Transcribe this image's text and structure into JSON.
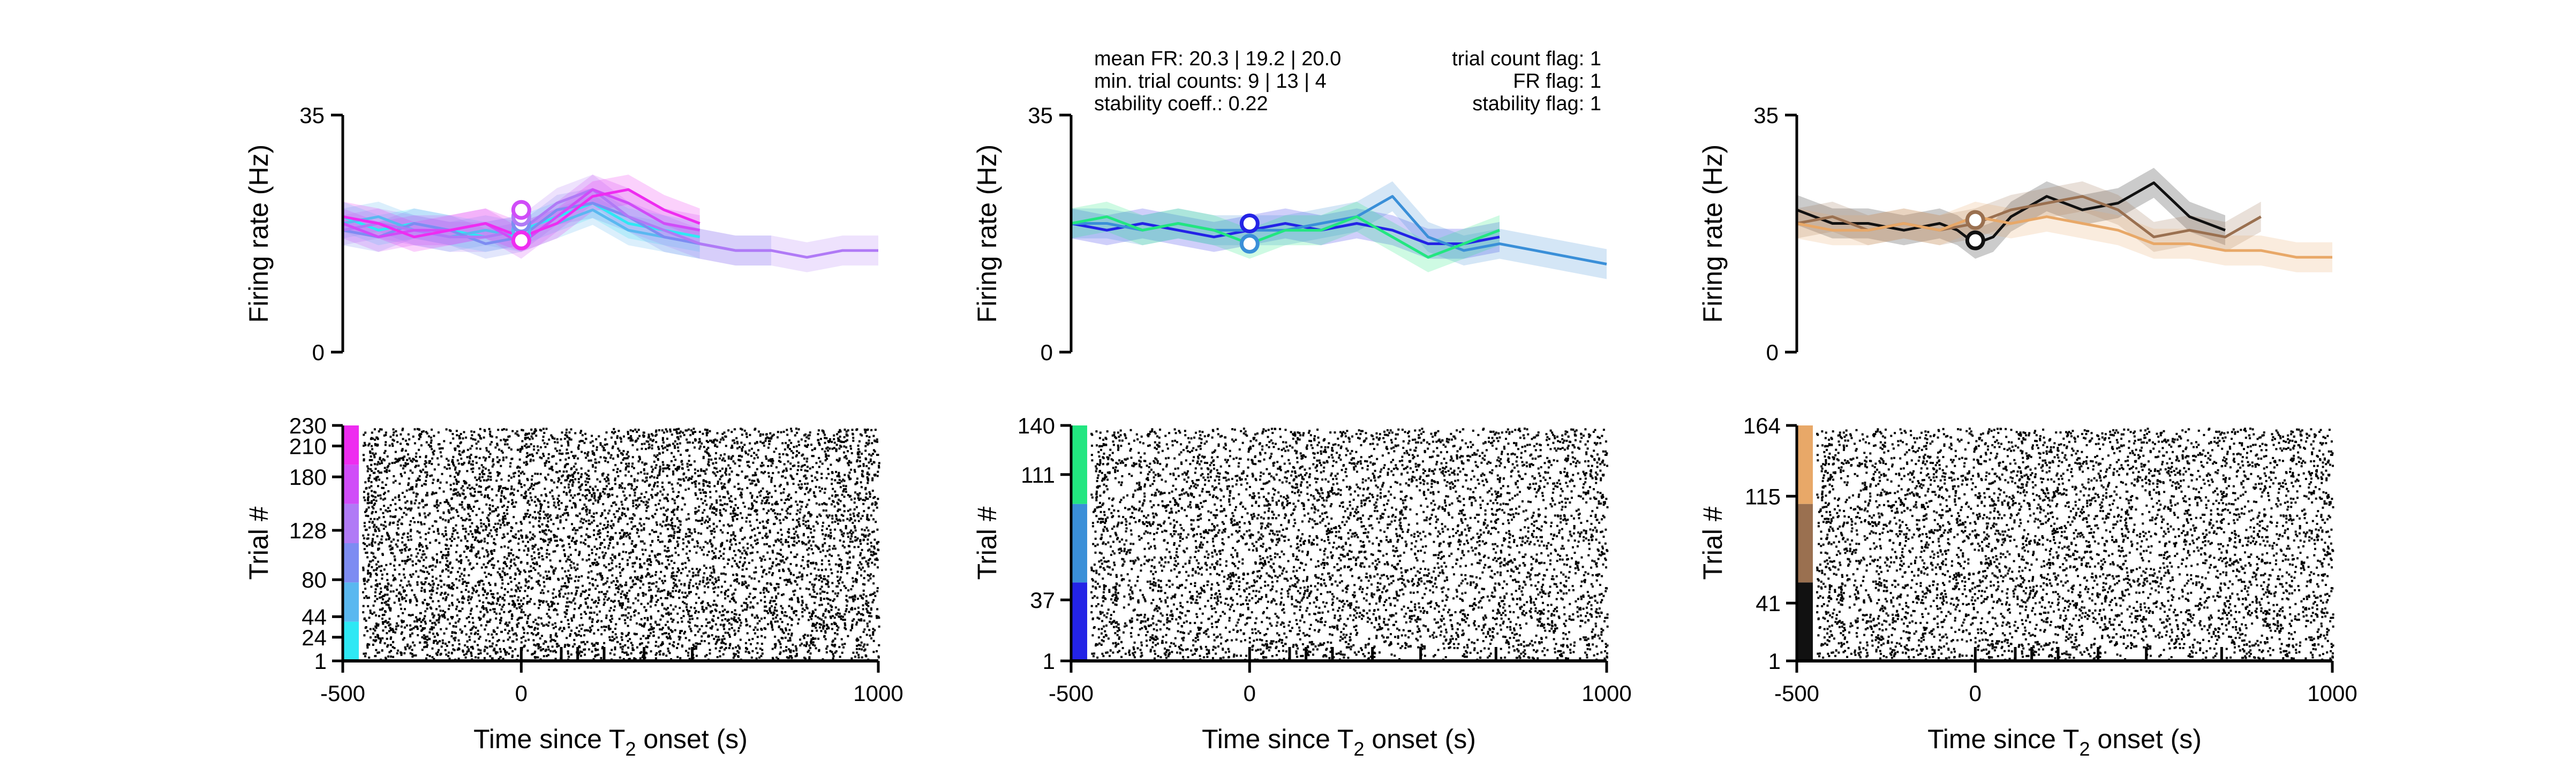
{
  "chart_data": [
    {
      "type": "line",
      "panel": "left",
      "xlabel": "Time since T",
      "xlabel_sub": "2",
      "xlabel_suffix": " onset (s)",
      "ylabel_top": "Firing rate (Hz)",
      "ylabel_bottom": "Trial #",
      "xlim": [
        -500,
        1000
      ],
      "x_ticks": [
        "-500",
        "0",
        "1000"
      ],
      "ylim": [
        0,
        35
      ],
      "y_ticks": [
        "0",
        "35"
      ],
      "raster_ylim": [
        1,
        230
      ],
      "raster_ticks": [
        "1",
        "24",
        "44",
        "80",
        "128",
        "180",
        "210",
        "230"
      ],
      "interval_ticks": [
        0,
        112,
        158,
        232,
        344,
        479
      ],
      "series": [
        {
          "color": "#2ee8f4",
          "x": [
            -500,
            -400,
            -300,
            -200,
            -100,
            0,
            100,
            200,
            300,
            400,
            500
          ],
          "y": [
            20,
            18,
            19,
            18,
            17,
            18,
            20,
            22,
            19,
            18,
            17
          ]
        },
        {
          "color": "#5ab8f0",
          "x": [
            -500,
            -400,
            -300,
            -200,
            -100,
            0,
            100,
            200,
            300,
            400,
            500
          ],
          "y": [
            19,
            20,
            18,
            17,
            18,
            17,
            19,
            21,
            18,
            17,
            16
          ]
        },
        {
          "color": "#7d8cf2",
          "x": [
            -500,
            -400,
            -300,
            -200,
            -100,
            0,
            100,
            200,
            300,
            400,
            500,
            600,
            700
          ],
          "y": [
            18,
            17,
            19,
            18,
            16,
            17,
            21,
            22,
            20,
            17,
            16,
            15,
            15
          ]
        },
        {
          "color": "#b07af6",
          "x": [
            -500,
            -400,
            -300,
            -200,
            -100,
            0,
            100,
            200,
            300,
            400,
            500,
            600,
            700,
            800,
            900,
            1000
          ],
          "y": [
            18,
            19,
            18,
            17,
            17,
            18,
            22,
            24,
            20,
            18,
            16,
            15,
            15,
            14,
            15,
            15
          ]
        },
        {
          "color": "#d04cf8",
          "x": [
            -500,
            -400,
            -300,
            -200,
            -100,
            0,
            100,
            200,
            300,
            400,
            500
          ],
          "y": [
            19,
            17,
            18,
            18,
            19,
            16,
            20,
            24,
            22,
            19,
            18
          ]
        },
        {
          "color": "#ee2cf0",
          "x": [
            -500,
            -400,
            -300,
            -200,
            -100,
            0,
            100,
            200,
            300,
            400,
            500
          ],
          "y": [
            20,
            19,
            17,
            18,
            19,
            17,
            19,
            23,
            24,
            21,
            19
          ]
        }
      ],
      "markers": [
        {
          "x": 0,
          "y": 17
        },
        {
          "x": 0,
          "y": 18
        },
        {
          "x": 0,
          "y": 19
        },
        {
          "x": 0,
          "y": 20
        },
        {
          "x": 0,
          "y": 21
        },
        {
          "x": 0,
          "y": 16.5
        }
      ]
    },
    {
      "type": "line",
      "panel": "middle",
      "xlabel": "Time since T",
      "xlabel_sub": "2",
      "xlabel_suffix": " onset (s)",
      "ylabel_top": "Firing rate (Hz)",
      "ylabel_bottom": "Trial #",
      "xlim": [
        -500,
        1000
      ],
      "x_ticks": [
        "-500",
        "0",
        "1000"
      ],
      "ylim": [
        0,
        35
      ],
      "y_ticks": [
        "0",
        "35"
      ],
      "raster_ylim": [
        1,
        140
      ],
      "raster_ticks": [
        "1",
        "37",
        "111",
        "140"
      ],
      "interval_ticks": [
        0,
        112,
        158,
        232,
        344,
        479,
        690
      ],
      "stats_left": [
        "mean FR: 20.3 | 19.2 | 20.0",
        "min. trial counts: 9 | 13 | 4",
        "stability coeff.: 0.22"
      ],
      "stats_right": [
        "trial count flag: 1",
        "FR flag: 1",
        "stability flag: 1"
      ],
      "series": [
        {
          "color": "#2323e6",
          "x": [
            -500,
            -400,
            -300,
            -200,
            -100,
            0,
            100,
            200,
            300,
            400,
            500,
            600,
            700
          ],
          "y": [
            19,
            18,
            19,
            18,
            17,
            18,
            19,
            18,
            19,
            18,
            16,
            16,
            17
          ]
        },
        {
          "color": "#3a8fd8",
          "x": [
            -500,
            -400,
            -300,
            -200,
            -100,
            0,
            100,
            200,
            300,
            400,
            500,
            600,
            700,
            800,
            900,
            1000
          ],
          "y": [
            19,
            19,
            18,
            19,
            18,
            18,
            18,
            19,
            20,
            23,
            17,
            15,
            16,
            15,
            14,
            13
          ]
        },
        {
          "color": "#22e680",
          "x": [
            -500,
            -400,
            -300,
            -200,
            -100,
            0,
            100,
            200,
            300,
            400,
            500,
            600,
            700
          ],
          "y": [
            19,
            20,
            18,
            19,
            18,
            16,
            18,
            18,
            20,
            17,
            14,
            16,
            18
          ]
        }
      ],
      "markers": [
        {
          "x": 0,
          "y": 19
        },
        {
          "x": 0,
          "y": 16
        }
      ]
    },
    {
      "type": "line",
      "panel": "right",
      "xlabel": "Time since T",
      "xlabel_sub": "2",
      "xlabel_suffix": " onset (s)",
      "ylabel_top": "Firing rate (Hz)",
      "ylabel_bottom": "Trial #",
      "xlim": [
        -500,
        1000
      ],
      "x_ticks": [
        "-500",
        "0",
        "1000"
      ],
      "ylim": [
        0,
        35
      ],
      "y_ticks": [
        "0",
        "35"
      ],
      "raster_ylim": [
        1,
        164
      ],
      "raster_ticks": [
        "1",
        "41",
        "115",
        "164"
      ],
      "interval_ticks": [
        0,
        112,
        158,
        232,
        344,
        479,
        690
      ],
      "series": [
        {
          "color": "#111111",
          "x": [
            -500,
            -450,
            -400,
            -300,
            -200,
            -100,
            -50,
            0,
            50,
            100,
            200,
            300,
            400,
            500,
            600,
            700
          ],
          "y": [
            21,
            20,
            19,
            19,
            18,
            19,
            18,
            16,
            17,
            20,
            23,
            21,
            22,
            25,
            20,
            18
          ]
        },
        {
          "color": "#9a7050",
          "x": [
            -500,
            -400,
            -300,
            -200,
            -100,
            0,
            100,
            200,
            300,
            400,
            500,
            600,
            700,
            800
          ],
          "y": [
            19,
            20,
            18,
            19,
            18,
            19,
            21,
            22,
            23,
            21,
            17,
            18,
            17,
            20
          ]
        },
        {
          "color": "#e8a868",
          "x": [
            -500,
            -400,
            -300,
            -200,
            -100,
            0,
            100,
            200,
            300,
            400,
            500,
            600,
            700,
            800,
            900,
            1000
          ],
          "y": [
            19,
            18,
            18,
            19,
            18,
            20,
            19,
            20,
            19,
            18,
            16,
            16,
            15,
            15,
            14,
            14
          ]
        }
      ],
      "markers": [
        {
          "x": 0,
          "y": 16.5
        },
        {
          "x": 0,
          "y": 19.5
        }
      ]
    }
  ]
}
